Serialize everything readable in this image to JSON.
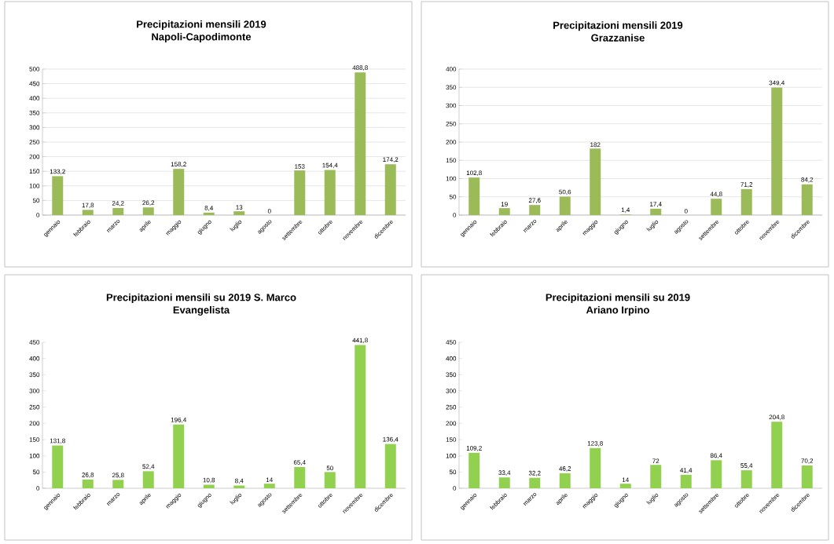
{
  "chart_data": [
    {
      "type": "bar",
      "title": "Precipitazioni mensili 2019",
      "subtitle": "Napoli-Capodimonte",
      "categories": [
        "gennaio",
        "febbraio",
        "marzo",
        "aprile",
        "maggio",
        "giugno",
        "luglio",
        "agosto",
        "settembre",
        "ottobre",
        "novembre",
        "dicembre"
      ],
      "values": [
        133.2,
        17.8,
        24.2,
        26.2,
        158.2,
        8.4,
        13,
        0,
        153,
        154.4,
        488.8,
        174.2
      ],
      "value_labels": [
        "133,2",
        "17,8",
        "24,2",
        "26,2",
        "158,2",
        "8,4",
        "13",
        "0",
        "153",
        "154,4",
        "488,8",
        "174,2"
      ],
      "color": "#9bbb59",
      "ylim": [
        0,
        500
      ],
      "yticks": [
        0,
        50,
        100,
        150,
        200,
        250,
        300,
        350,
        400,
        450,
        500
      ],
      "grid": "y"
    },
    {
      "type": "bar",
      "title": "Precipitazioni mensili 2019",
      "subtitle": "Grazzanise",
      "categories": [
        "gennaio",
        "febbraio",
        "marzo",
        "aprile",
        "maggio",
        "giugno",
        "luglio",
        "agosto",
        "settembre",
        "ottobre",
        "novembre",
        "dicembre"
      ],
      "values": [
        102.8,
        19,
        27.6,
        50.6,
        182,
        1.4,
        17.4,
        0,
        44.8,
        71.2,
        349.4,
        84.2
      ],
      "value_labels": [
        "102,8",
        "19",
        "27,6",
        "50,6",
        "182",
        "1,4",
        "17,4",
        "0",
        "44,8",
        "71,2",
        "349,4",
        "84,2"
      ],
      "color": "#9bbb59",
      "ylim": [
        0,
        400
      ],
      "yticks": [
        0,
        50,
        100,
        150,
        200,
        250,
        300,
        350,
        400
      ],
      "grid": "y"
    },
    {
      "type": "bar",
      "title": "Precipitazioni mensili su 2019 S. Marco",
      "subtitle": "Evangelista",
      "categories": [
        "gennaio",
        "febbraio",
        "marzo",
        "aprile",
        "maggio",
        "giugno",
        "luglio",
        "agosto",
        "settembre",
        "ottobre",
        "novembre",
        "dicembre"
      ],
      "values": [
        131.8,
        26.8,
        25.8,
        52.4,
        196.4,
        10.8,
        8.4,
        14,
        65.4,
        50,
        441.8,
        136.4
      ],
      "value_labels": [
        "131,8",
        "26,8",
        "25,8",
        "52,4",
        "196,4",
        "10,8",
        "8,4",
        "14",
        "65,4",
        "50",
        "441,8",
        "136,4"
      ],
      "color": "#92d050",
      "ylim": [
        0,
        450
      ],
      "yticks": [
        0,
        50,
        100,
        150,
        200,
        250,
        300,
        350,
        400,
        450
      ]
    },
    {
      "type": "bar",
      "title": "Precipitazioni mensili su 2019",
      "subtitle": "Ariano Irpino",
      "categories": [
        "gennaio",
        "febbraio",
        "marzo",
        "aprile",
        "maggio",
        "giugno",
        "luglio",
        "agosto",
        "settembre",
        "ottobre",
        "novembre",
        "dicembre"
      ],
      "values": [
        109.2,
        33.4,
        32.2,
        46.2,
        123.8,
        14,
        72,
        41.4,
        86.4,
        55.4,
        204.8,
        70.2
      ],
      "value_labels": [
        "109,2",
        "33,4",
        "32,2",
        "46,2",
        "123,8",
        "14",
        "72",
        "41,4",
        "86,4",
        "55,4",
        "204,8",
        "70,2"
      ],
      "color": "#92d050",
      "ylim": [
        0,
        450
      ],
      "yticks": [
        0,
        50,
        100,
        150,
        200,
        250,
        300,
        350,
        400,
        450
      ]
    }
  ]
}
